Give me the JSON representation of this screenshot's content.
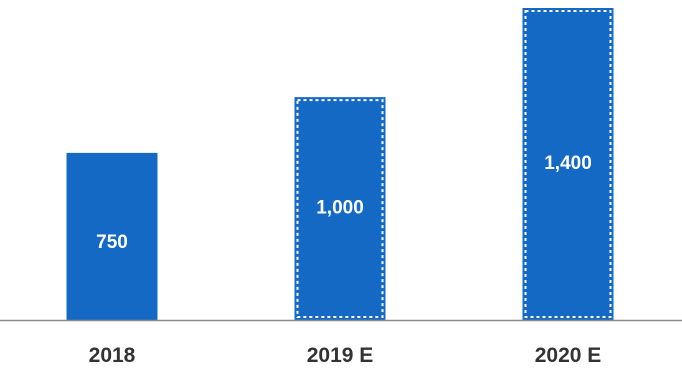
{
  "colors": {
    "bar": "#1469C4",
    "estimate_border": "#ffffff",
    "axis": "#8C8C8C",
    "category_text": "#333333",
    "value_text": "#ffffff"
  },
  "chart_data": {
    "type": "bar",
    "categories": [
      "2018",
      "2019 E",
      "2020 E"
    ],
    "values": [
      750,
      1000,
      1400
    ],
    "value_labels": [
      "750",
      "1,000",
      "1,400"
    ],
    "estimated": [
      false,
      true,
      true
    ],
    "title": "",
    "xlabel": "",
    "ylabel": "",
    "ylim": [
      0,
      1400
    ],
    "grid": false,
    "legend": "none"
  }
}
